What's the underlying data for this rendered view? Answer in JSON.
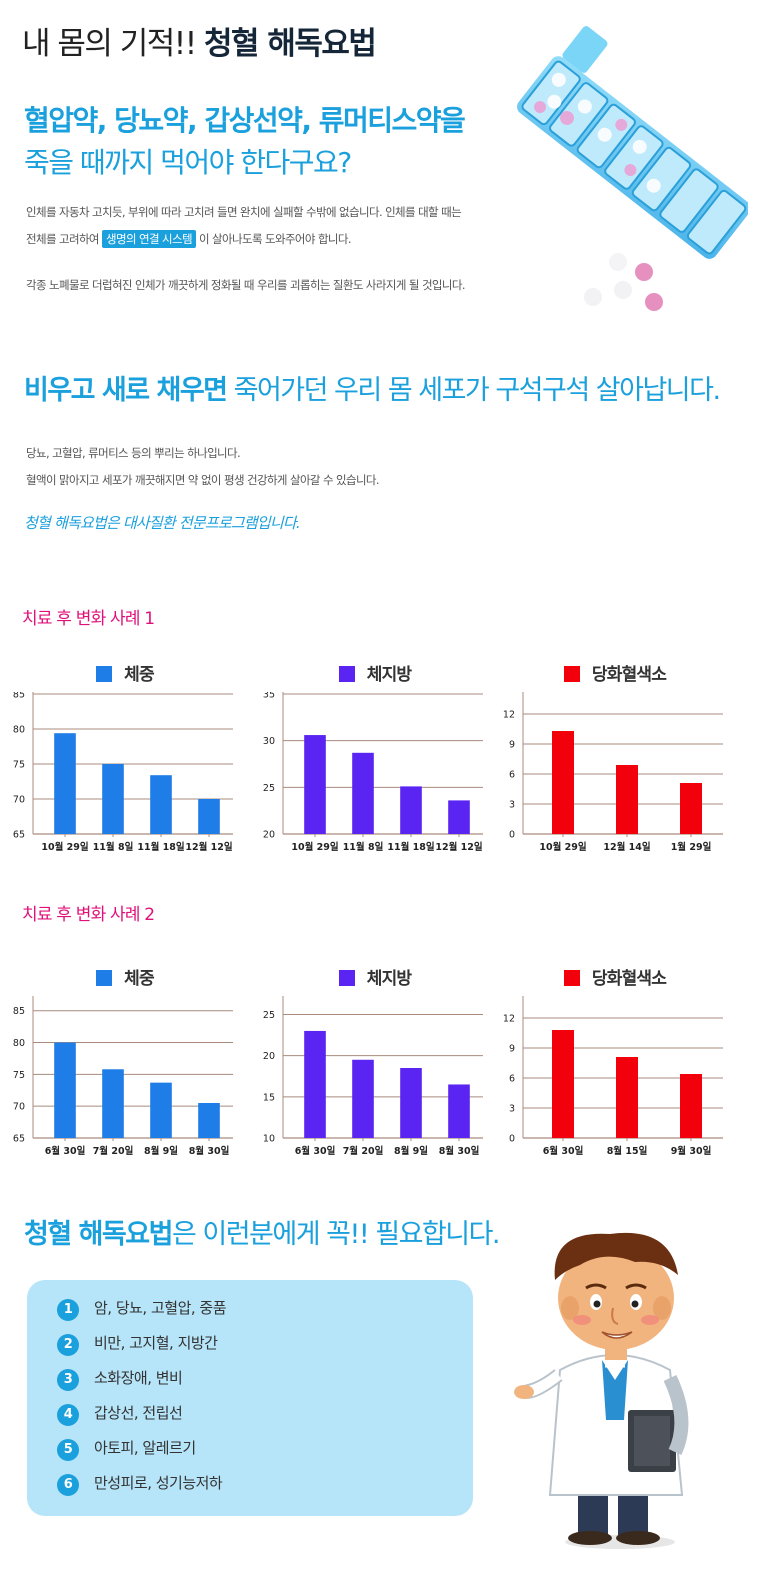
{
  "header": {
    "title_light": "내 몸의 기적!! ",
    "title_bold": "청혈 해독요법"
  },
  "intro": {
    "headline_1": "혈압약, 당뇨약, 갑상선약, 류머티스약을",
    "headline_2": "죽을 때까지 먹어야 한다구요?",
    "p1_line1": "인체를 자동차 고치듯, 부위에 따라 고치려 들면 완치에 실패할 수밖에 없습니다. 인체를 대할 때는",
    "p1_line2_before": "전체를 고려하여 ",
    "p1_highlight": "생명의 연결 시스템",
    "p1_line2_after": " 이 살아나도록 도와주어야 합니다.",
    "p2": "각종 노폐물로 더럽혀진 인체가 깨끗하게 정화될 때 우리를 괴롭히는 질환도 사라지게 될 것입니다."
  },
  "section2": {
    "headline_bold": "비우고 새로 채우면",
    "headline_rest": " 죽어가던 우리 몸 세포가 구석구석 살아납니다.",
    "line1": "당뇨, 고혈압, 류머티스 등의 뿌리는 하나입니다.",
    "line2": "혈액이 맑아지고 세포가 깨끗해지면 약 없이 평생 건강하게 살아갈 수 있습니다.",
    "italic": "청혈 해독요법은 대사질환 전문프로그램입니다."
  },
  "case1_title": "치료 후 변화 사례 1",
  "case2_title": "치료 후 변화 사례 2",
  "colors": {
    "blue": "#1e7de6",
    "purple": "#5a24f2",
    "red": "#f2000c",
    "accent": "#1aa0dc",
    "pink": "#e0107a"
  },
  "chart_data": [
    {
      "type": "bar",
      "title": "체중",
      "color": "#1e7de6",
      "categories": [
        "10월 29일",
        "11월 8일",
        "11월 18일",
        "12월 12일"
      ],
      "values": [
        79.4,
        75,
        73.4,
        70
      ],
      "ylim": [
        65,
        85
      ],
      "yticks": [
        65,
        70,
        75,
        80,
        85
      ]
    },
    {
      "type": "bar",
      "title": "체지방",
      "color": "#5a24f2",
      "categories": [
        "10월 29일",
        "11월 8일",
        "11월 18일",
        "12월 12일"
      ],
      "values": [
        30.6,
        28.7,
        25.1,
        23.6
      ],
      "ylim": [
        20,
        35
      ],
      "yticks": [
        20,
        25,
        30,
        35
      ]
    },
    {
      "type": "bar",
      "title": "당화혈색소",
      "color": "#f2000c",
      "categories": [
        "10월 29일",
        "12월 14일",
        "1월 29일"
      ],
      "values": [
        10.3,
        6.9,
        5.1
      ],
      "ylim": [
        0,
        14
      ],
      "yticks": [
        0,
        3,
        6,
        9,
        12
      ]
    },
    {
      "type": "bar",
      "title": "체중",
      "color": "#1e7de6",
      "categories": [
        "6월 30일",
        "7월 20일",
        "8월 9일",
        "8월 30일"
      ],
      "values": [
        80,
        75.8,
        73.7,
        70.5
      ],
      "ylim": [
        65,
        87
      ],
      "yticks": [
        65,
        70,
        75,
        80,
        85
      ]
    },
    {
      "type": "bar",
      "title": "체지방",
      "color": "#5a24f2",
      "categories": [
        "6월 30일",
        "7월 20일",
        "8월 9일",
        "8월 30일"
      ],
      "values": [
        23,
        19.5,
        18.5,
        16.5
      ],
      "ylim": [
        10,
        27
      ],
      "yticks": [
        10,
        15,
        20,
        25
      ]
    },
    {
      "type": "bar",
      "title": "당화혈색소",
      "color": "#f2000c",
      "categories": [
        "6월 30일",
        "8월 15일",
        "9월 30일"
      ],
      "values": [
        10.8,
        8.1,
        6.4
      ],
      "ylim": [
        0,
        14
      ],
      "yticks": [
        0,
        3,
        6,
        9,
        12
      ]
    }
  ],
  "needs": {
    "headline_bold": "청혈 해독요법",
    "headline_rest": "은 이런분에게 꼭!! 필요합니다.",
    "items": [
      {
        "num": "1",
        "label": "암, 당뇨, 고혈압, 중품"
      },
      {
        "num": "2",
        "label": "비만, 고지혈, 지방간"
      },
      {
        "num": "3",
        "label": "소화장애, 변비"
      },
      {
        "num": "4",
        "label": "갑상선, 전립선"
      },
      {
        "num": "5",
        "label": "아토피, 알레르기"
      },
      {
        "num": "6",
        "label": "만성피로, 성기능저하"
      }
    ]
  }
}
